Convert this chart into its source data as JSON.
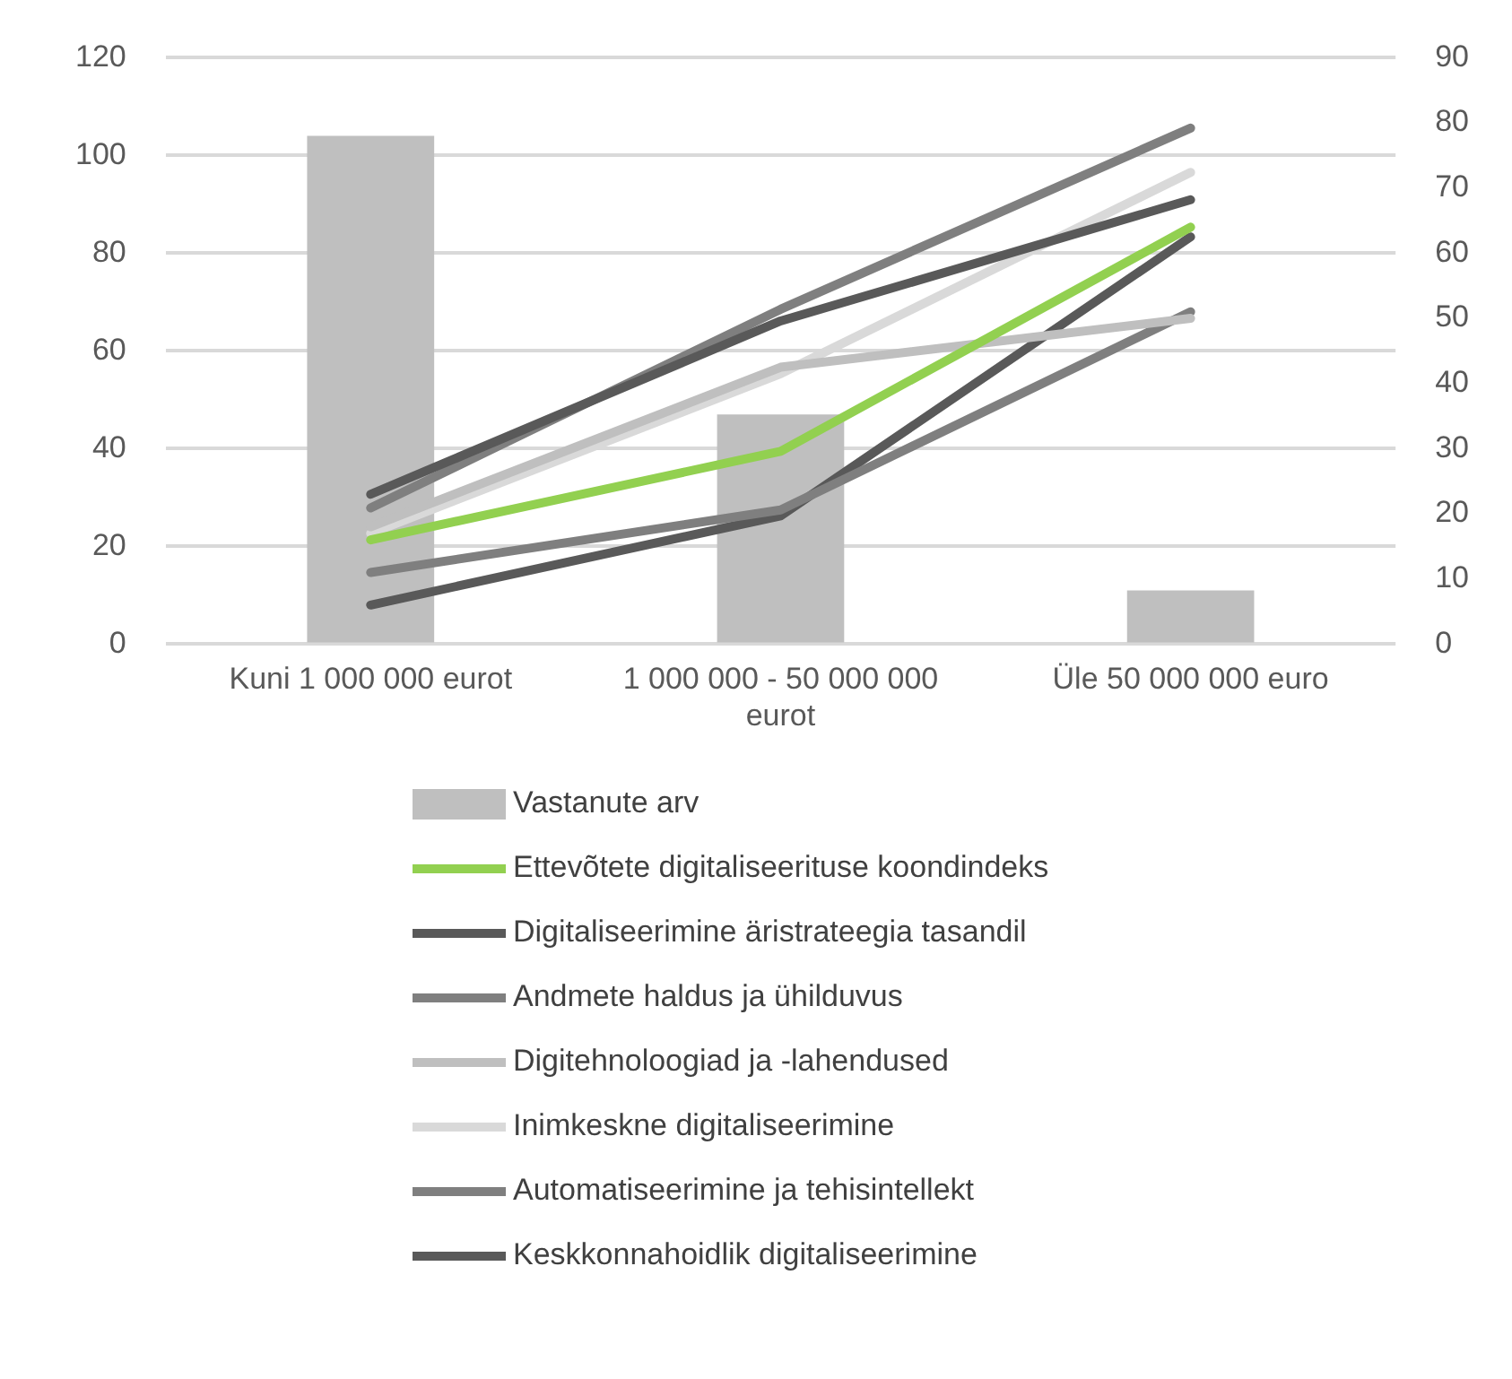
{
  "chart_data": {
    "type": "bar",
    "categories": [
      "Kuni 1 000 000 eurot",
      "1 000 000 - 50 000 000 eurot",
      "Üle 50 000 000 euro"
    ],
    "series": [
      {
        "name": "Vastanute arv",
        "color": "#bfbfbf",
        "values": [
          104,
          47,
          11
        ]
      },
      {
        "name": "Ettevõtete digitaliseerituse koondindeks",
        "type": "line",
        "axis": "y2",
        "color": "#92d050",
        "values": [
          16,
          29.6,
          64
        ]
      },
      {
        "name": "Digitaliseerimine äristrateegia tasandil",
        "type": "line",
        "axis": "y2",
        "color": "#595959",
        "values": [
          23,
          49.6,
          68.2
        ]
      },
      {
        "name": "Andmete haldus ja ühilduvus",
        "type": "line",
        "axis": "y2",
        "color": "#7f7f7f",
        "values": [
          20.9,
          51.4,
          79.2
        ]
      },
      {
        "name": "Digitehnoloogiad ja -lahendused",
        "type": "line",
        "axis": "y2",
        "color": "#bfbfbf",
        "values": [
          18,
          42.5,
          50
        ]
      },
      {
        "name": "Inimkeskne digitaliseerimine",
        "type": "line",
        "axis": "y2",
        "color": "#d9d9d9",
        "values": [
          17,
          41.5,
          72.4
        ]
      },
      {
        "name": "Automatiseerimine ja tehisintellekt",
        "type": "line",
        "axis": "y2",
        "color": "#7f7f7f",
        "values": [
          11,
          20.6,
          51
        ]
      },
      {
        "name": "Keskkonnahoidlik digitaliseerimine",
        "type": "line",
        "axis": "y2",
        "color": "#595959",
        "values": [
          6,
          19.7,
          62.5
        ]
      }
    ],
    "ylim": [
      0,
      120
    ],
    "yticks": [
      0,
      20,
      40,
      60,
      80,
      100,
      120
    ],
    "y2lim": [
      0,
      90
    ],
    "y2ticks": [
      0,
      10,
      20,
      30,
      40,
      50,
      60,
      70,
      80,
      90
    ],
    "grid": "y",
    "legend": "bottom",
    "marker": "none",
    "line_style": "solid"
  }
}
